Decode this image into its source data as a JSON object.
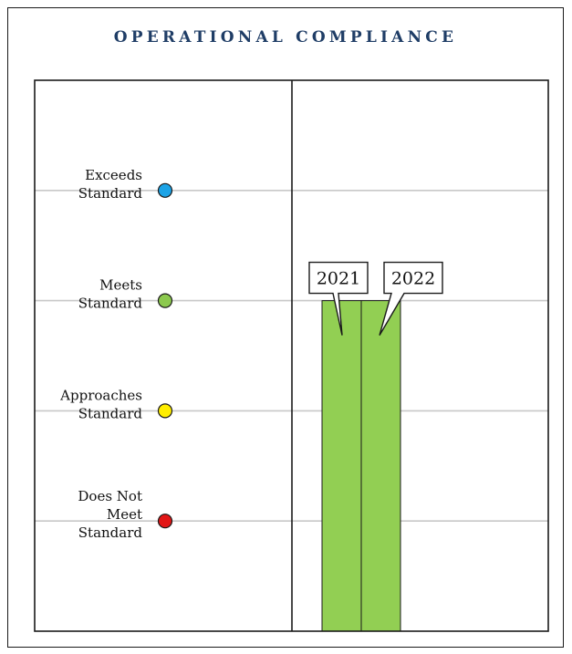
{
  "header": {
    "title": "OPERATIONAL COMPLIANCE"
  },
  "chart_data": {
    "type": "bar",
    "title": "OPERATIONAL COMPLIANCE",
    "levels": [
      {
        "label_lines": [
          "Exceeds",
          "Standard"
        ],
        "value": 4,
        "color": "#1ca3e6"
      },
      {
        "label_lines": [
          "Meets",
          "Standard"
        ],
        "value": 3,
        "color": "#8cc94e"
      },
      {
        "label_lines": [
          "Approaches",
          "Standard"
        ],
        "value": 2,
        "color": "#ffee00"
      },
      {
        "label_lines": [
          "Does Not",
          "Meet",
          "Standard"
        ],
        "value": 1,
        "color": "#e21616"
      }
    ],
    "categories": [
      "2021",
      "2022"
    ],
    "values": [
      3,
      3
    ],
    "bar_color": "#92cf53",
    "ylim": [
      0,
      5
    ],
    "grid": true
  }
}
